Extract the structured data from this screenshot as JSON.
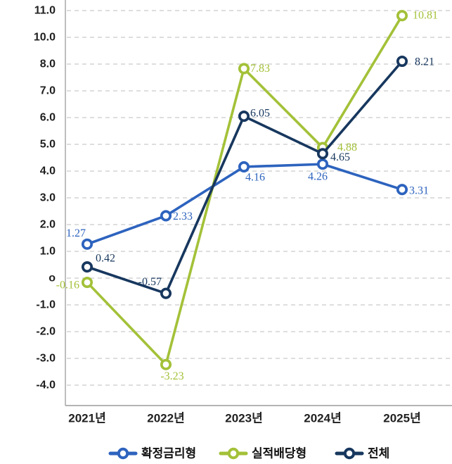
{
  "chart_data": {
    "type": "line",
    "title": "",
    "categories": [
      "2021년",
      "2022년",
      "2023년",
      "2024년",
      "2025년"
    ],
    "y_ticks": [
      {
        "label": "11.0",
        "value": 11
      },
      {
        "label": "10.0",
        "value": 10
      },
      {
        "label": "8.0",
        "value": 8
      },
      {
        "label": "7.0",
        "value": 7
      },
      {
        "label": "6.0",
        "value": 6
      },
      {
        "label": "5.0",
        "value": 5
      },
      {
        "label": "4.0",
        "value": 4
      },
      {
        "label": "3.0",
        "value": 3
      },
      {
        "label": "2.0",
        "value": 2
      },
      {
        "label": "1.0",
        "value": 1
      },
      {
        "label": "o",
        "value": 0
      },
      {
        "label": "-1.0",
        "value": -1
      },
      {
        "label": "-2.0",
        "value": -2
      },
      {
        "label": "-3.0",
        "value": -3
      },
      {
        "label": "-4.0",
        "value": -4
      }
    ],
    "ylim": [
      -4,
      11
    ],
    "series": [
      {
        "name": "확정금리형",
        "color": "#2d63be",
        "values": [
          1.27,
          2.33,
          4.16,
          4.26,
          3.31
        ],
        "point_labels": [
          "1.27",
          "2.33",
          "4.16",
          "4.26",
          "3.31"
        ],
        "label_offsets": [
          {
            "dx": -2,
            "dy": -15,
            "anchor": "end"
          },
          {
            "dx": 10,
            "dy": 1,
            "anchor": "start"
          },
          {
            "dx": 2,
            "dy": 15,
            "anchor": "start"
          },
          {
            "dx": -7,
            "dy": 18,
            "anchor": "middle"
          },
          {
            "dx": 10,
            "dy": 2,
            "anchor": "start"
          }
        ]
      },
      {
        "name": "실적배당형",
        "color": "#a3c138",
        "values": [
          -0.16,
          -3.23,
          7.83,
          4.88,
          10.81
        ],
        "point_labels": [
          "-0.16",
          "-3.23",
          "7.83",
          "4.88",
          "10.81"
        ],
        "label_offsets": [
          {
            "dx": -11,
            "dy": 4,
            "anchor": "end"
          },
          {
            "dx": 9,
            "dy": 17,
            "anchor": "middle"
          },
          {
            "dx": 9,
            "dy": 0,
            "anchor": "start"
          },
          {
            "dx": 21,
            "dy": 0,
            "anchor": "start"
          },
          {
            "dx": 15,
            "dy": 0,
            "anchor": "start"
          }
        ]
      },
      {
        "name": "전체",
        "color": "#17375e",
        "values": [
          0.42,
          -0.57,
          6.05,
          4.65,
          8.21
        ],
        "point_labels": [
          "0.42",
          "-0.57",
          "6.05",
          "4.65",
          "8.21"
        ],
        "label_offsets": [
          {
            "dx": 12,
            "dy": -12,
            "anchor": "start"
          },
          {
            "dx": -6,
            "dy": -16,
            "anchor": "end"
          },
          {
            "dx": 9,
            "dy": -4,
            "anchor": "start"
          },
          {
            "dx": 11,
            "dy": 5,
            "anchor": "start"
          },
          {
            "dx": 18,
            "dy": 1,
            "anchor": "start"
          }
        ]
      }
    ],
    "legend": {
      "position": "bottom",
      "items": [
        "확정금리형",
        "실적배당형",
        "전체"
      ]
    },
    "grid": {
      "horizontal": true,
      "style": "dashed",
      "color": "#c9c9c9"
    },
    "axis": {
      "line_color": "#9b9b9b",
      "tick_text_color": "#1f1f1f"
    }
  }
}
